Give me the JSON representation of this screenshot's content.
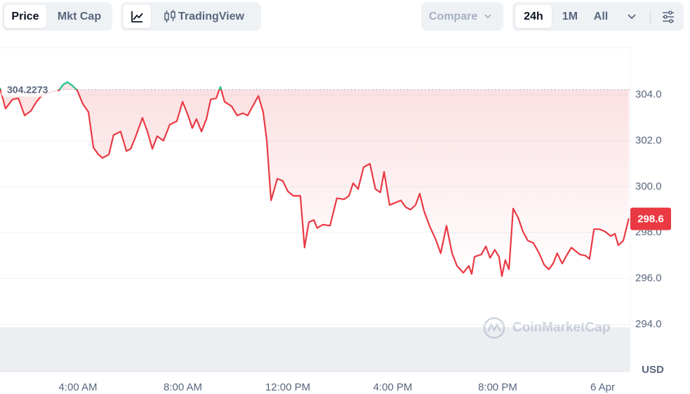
{
  "toolbar": {
    "chart_modes": [
      "Price",
      "Mkt Cap"
    ],
    "tradingview": "TradingView",
    "compare": "Compare",
    "ranges": [
      "24h",
      "1M",
      "All"
    ]
  },
  "chart_data": {
    "type": "line",
    "x": [
      1.03,
      1.24,
      1.51,
      1.73,
      1.97,
      2.21,
      2.42,
      2.64,
      3.04,
      3.28,
      3.44,
      3.6,
      3.79,
      3.97,
      4.19,
      4.4,
      4.59,
      4.78,
      4.94,
      5.18,
      5.36,
      5.63,
      5.85,
      6.01,
      6.19,
      6.46,
      6.65,
      6.84,
      7.02,
      7.26,
      7.5,
      7.77,
      7.99,
      8.2,
      8.36,
      8.52,
      8.71,
      8.9,
      9.06,
      9.27,
      9.43,
      9.59,
      9.86,
      10.07,
      10.29,
      10.47,
      10.66,
      10.88,
      11.06,
      11.2,
      11.36,
      11.6,
      11.81,
      12.0,
      12.21,
      12.48,
      12.64,
      12.8,
      12.99,
      13.12,
      13.34,
      13.61,
      13.87,
      14.14,
      14.33,
      14.49,
      14.68,
      14.89,
      15.13,
      15.34,
      15.53,
      15.67,
      15.88,
      16.09,
      16.31,
      16.5,
      16.68,
      16.87,
      17.03,
      17.19,
      17.4,
      17.62,
      17.83,
      18.05,
      18.26,
      18.45,
      18.69,
      18.9,
      19.01,
      19.12,
      19.38,
      19.55,
      19.71,
      19.89,
      20.05,
      20.16,
      20.29,
      20.43,
      20.59,
      20.78,
      20.96,
      21.15,
      21.36,
      21.58,
      21.77,
      21.95,
      22.11,
      22.27,
      22.46,
      22.65,
      22.81,
      22.97,
      23.13,
      23.34,
      23.5,
      23.67,
      23.88,
      24.09,
      24.31,
      24.47,
      24.6,
      24.79,
      25.0
    ],
    "values": [
      304.3,
      303.4,
      303.8,
      303.85,
      303.1,
      303.3,
      303.7,
      304.0,
      304.15,
      304.2,
      304.45,
      304.55,
      304.4,
      304.2,
      303.6,
      303.25,
      301.7,
      301.4,
      301.25,
      301.4,
      302.25,
      302.4,
      301.55,
      301.65,
      302.15,
      303.0,
      302.4,
      301.65,
      302.2,
      302.0,
      302.7,
      302.85,
      303.7,
      303.1,
      302.55,
      302.95,
      302.4,
      302.95,
      303.8,
      303.85,
      304.35,
      303.7,
      303.5,
      303.1,
      303.2,
      303.1,
      303.5,
      303.95,
      303.25,
      302.0,
      299.4,
      300.35,
      300.25,
      299.8,
      299.6,
      299.6,
      297.35,
      298.45,
      298.55,
      298.2,
      298.35,
      298.3,
      299.5,
      299.45,
      299.6,
      300.15,
      299.9,
      300.85,
      301.0,
      299.9,
      299.75,
      300.65,
      299.2,
      299.3,
      299.4,
      299.1,
      299.0,
      299.2,
      299.7,
      298.95,
      298.3,
      297.75,
      297.1,
      298.3,
      297.1,
      296.55,
      296.25,
      296.55,
      296.2,
      296.95,
      297.05,
      297.4,
      296.9,
      297.25,
      296.95,
      296.1,
      296.8,
      296.4,
      299.05,
      298.65,
      298.05,
      297.65,
      297.55,
      297.1,
      296.6,
      296.4,
      296.65,
      297.1,
      296.65,
      297.05,
      297.35,
      297.2,
      297.05,
      297.0,
      296.85,
      298.15,
      298.15,
      298.05,
      297.85,
      297.95,
      297.45,
      297.65,
      298.62
    ],
    "color": "#ea3943",
    "up_color": "#16c784",
    "reference_value": 304.2273,
    "current_price": 298.6,
    "currency": "USD",
    "watermark": "CoinMarketCap",
    "xlim": [
      1.03,
      25.03
    ],
    "xticks": [
      {
        "value": 4,
        "label": "4:00 AM"
      },
      {
        "value": 8,
        "label": "8:00 AM"
      },
      {
        "value": 12,
        "label": "12:00 PM"
      },
      {
        "value": 16,
        "label": "4:00 PM"
      },
      {
        "value": 20,
        "label": "8:00 PM"
      },
      {
        "value": 24,
        "label": "6 Apr"
      }
    ],
    "ylim": [
      291.92,
      306.05
    ],
    "yticks": [
      {
        "value": 294,
        "label": "294.0"
      },
      {
        "value": 296,
        "label": "296.0"
      },
      {
        "value": 298,
        "label": "298.0"
      },
      {
        "value": 300,
        "label": "300.0"
      },
      {
        "value": 302,
        "label": "302.0"
      },
      {
        "value": 304,
        "label": "304.0"
      }
    ],
    "grid": true
  }
}
